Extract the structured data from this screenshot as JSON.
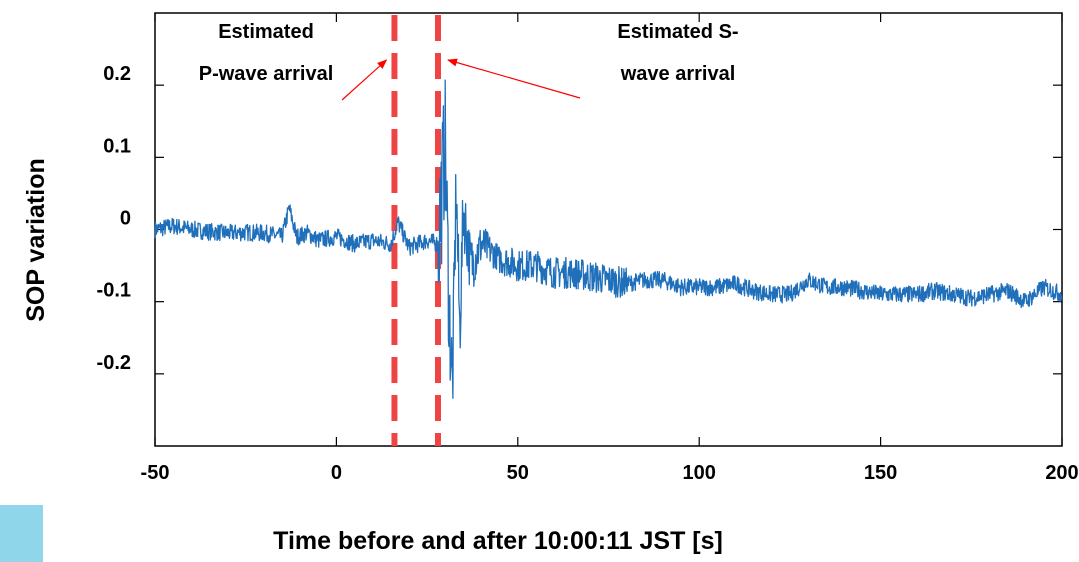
{
  "chart_data": {
    "type": "line",
    "title": "",
    "xlabel": "Time before and after 10:00:11 JST [s]",
    "ylabel": "SOP variation",
    "xlim": [
      -50,
      200
    ],
    "ylim": [
      -0.3,
      0.3
    ],
    "xticks": [
      -50,
      0,
      50,
      100,
      150,
      200
    ],
    "xtick_labels": [
      "-50",
      "0",
      "50",
      "100",
      "150",
      "200"
    ],
    "yticks": [
      0.2,
      0.1,
      0,
      -0.1,
      -0.2
    ],
    "ytick_labels": [
      "0.2",
      "0.1",
      "0",
      "-0.1",
      "-0.2"
    ],
    "grid": false,
    "series": [
      {
        "color": "#1f6fba",
        "x": [
          -50,
          -45,
          -40,
          -35,
          -30,
          -25,
          -20,
          -15,
          -13,
          -11,
          -8,
          -5,
          0,
          5,
          10,
          15,
          17,
          20,
          25,
          28,
          29,
          30,
          31,
          32,
          33,
          34,
          35,
          37,
          40,
          45,
          50,
          55,
          60,
          65,
          70,
          75,
          80,
          85,
          90,
          95,
          100,
          105,
          110,
          115,
          120,
          125,
          130,
          135,
          140,
          145,
          150,
          155,
          160,
          165,
          170,
          175,
          180,
          185,
          190,
          195,
          200
        ],
        "y": [
          0.0,
          0.005,
          0.0,
          -0.003,
          -0.005,
          -0.004,
          -0.005,
          -0.01,
          0.03,
          -0.01,
          -0.005,
          -0.015,
          -0.01,
          -0.02,
          -0.015,
          -0.02,
          0.01,
          -0.025,
          -0.015,
          -0.02,
          0.05,
          0.12,
          -0.1,
          -0.22,
          0.06,
          -0.14,
          0.03,
          -0.05,
          -0.02,
          -0.04,
          -0.05,
          -0.05,
          -0.06,
          -0.06,
          -0.065,
          -0.07,
          -0.075,
          -0.07,
          -0.07,
          -0.08,
          -0.08,
          -0.08,
          -0.075,
          -0.085,
          -0.09,
          -0.09,
          -0.07,
          -0.08,
          -0.08,
          -0.085,
          -0.09,
          -0.09,
          -0.09,
          -0.085,
          -0.09,
          -0.095,
          -0.09,
          -0.085,
          -0.1,
          -0.08,
          -0.09
        ]
      }
    ],
    "markers": [
      {
        "name": "p-wave-line",
        "x": 16,
        "color": "#ee4444",
        "style": "dashed"
      },
      {
        "name": "s-wave-line",
        "x": 28,
        "color": "#ee4444",
        "style": "dashed"
      }
    ],
    "annotations": [
      {
        "lines": [
          "Estimated",
          "P-wave arrival"
        ],
        "target_x": 16,
        "arrow_color": "#ff0000"
      },
      {
        "lines": [
          "Estimated S-",
          "wave arrival"
        ],
        "target_x": 28,
        "arrow_color": "#ff0000"
      }
    ]
  }
}
